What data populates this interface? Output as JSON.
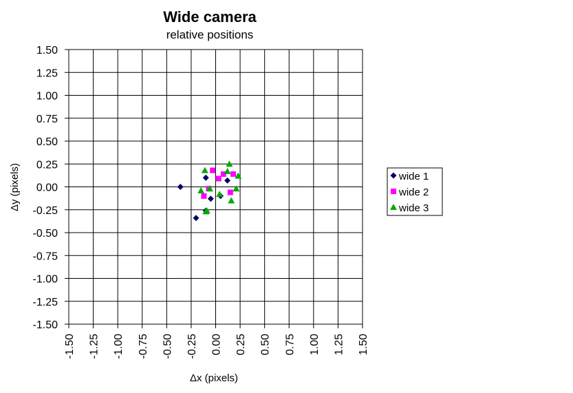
{
  "chart_data": {
    "type": "scatter",
    "title": "Wide camera",
    "subtitle": "relative positions",
    "xlabel": "Δx (pixels)",
    "ylabel": "Δy (pixels)",
    "xlim": [
      -1.5,
      1.5
    ],
    "ylim": [
      -1.5,
      1.5
    ],
    "x_ticks": [
      "-1.50",
      "-1.25",
      "-1.00",
      "-0.75",
      "-0.50",
      "-0.25",
      "0.00",
      "0.25",
      "0.50",
      "0.75",
      "1.00",
      "1.25",
      "1.50"
    ],
    "y_ticks": [
      "1.50",
      "1.25",
      "1.00",
      "0.75",
      "0.50",
      "0.25",
      "0.00",
      "-0.25",
      "-0.50",
      "-0.75",
      "-1.00",
      "-1.25",
      "-1.50"
    ],
    "grid": true,
    "legend_position": "right",
    "series": [
      {
        "name": "wide 1",
        "marker": "diamond",
        "color": "#000066",
        "points": [
          [
            -0.36,
            0.0
          ],
          [
            -0.2,
            -0.34
          ],
          [
            -0.1,
            0.1
          ],
          [
            -0.1,
            -0.26
          ],
          [
            -0.05,
            -0.13
          ],
          [
            0.05,
            -0.1
          ],
          [
            0.12,
            0.07
          ]
        ]
      },
      {
        "name": "wide 2",
        "marker": "square",
        "color": "#ff00ff",
        "points": [
          [
            -0.12,
            -0.1
          ],
          [
            -0.07,
            -0.02
          ],
          [
            -0.03,
            0.18
          ],
          [
            0.03,
            0.09
          ],
          [
            0.08,
            0.14
          ],
          [
            0.15,
            -0.06
          ],
          [
            0.18,
            0.14
          ]
        ]
      },
      {
        "name": "wide 3",
        "marker": "triangle",
        "color": "#00aa00",
        "points": [
          [
            -0.15,
            -0.04
          ],
          [
            -0.11,
            0.18
          ],
          [
            -0.1,
            -0.27
          ],
          [
            -0.09,
            -0.26
          ],
          [
            -0.06,
            -0.02
          ],
          [
            0.04,
            -0.08
          ],
          [
            0.12,
            0.17
          ],
          [
            0.14,
            0.25
          ],
          [
            0.16,
            -0.15
          ],
          [
            0.21,
            -0.02
          ],
          [
            0.23,
            0.12
          ]
        ]
      }
    ]
  }
}
